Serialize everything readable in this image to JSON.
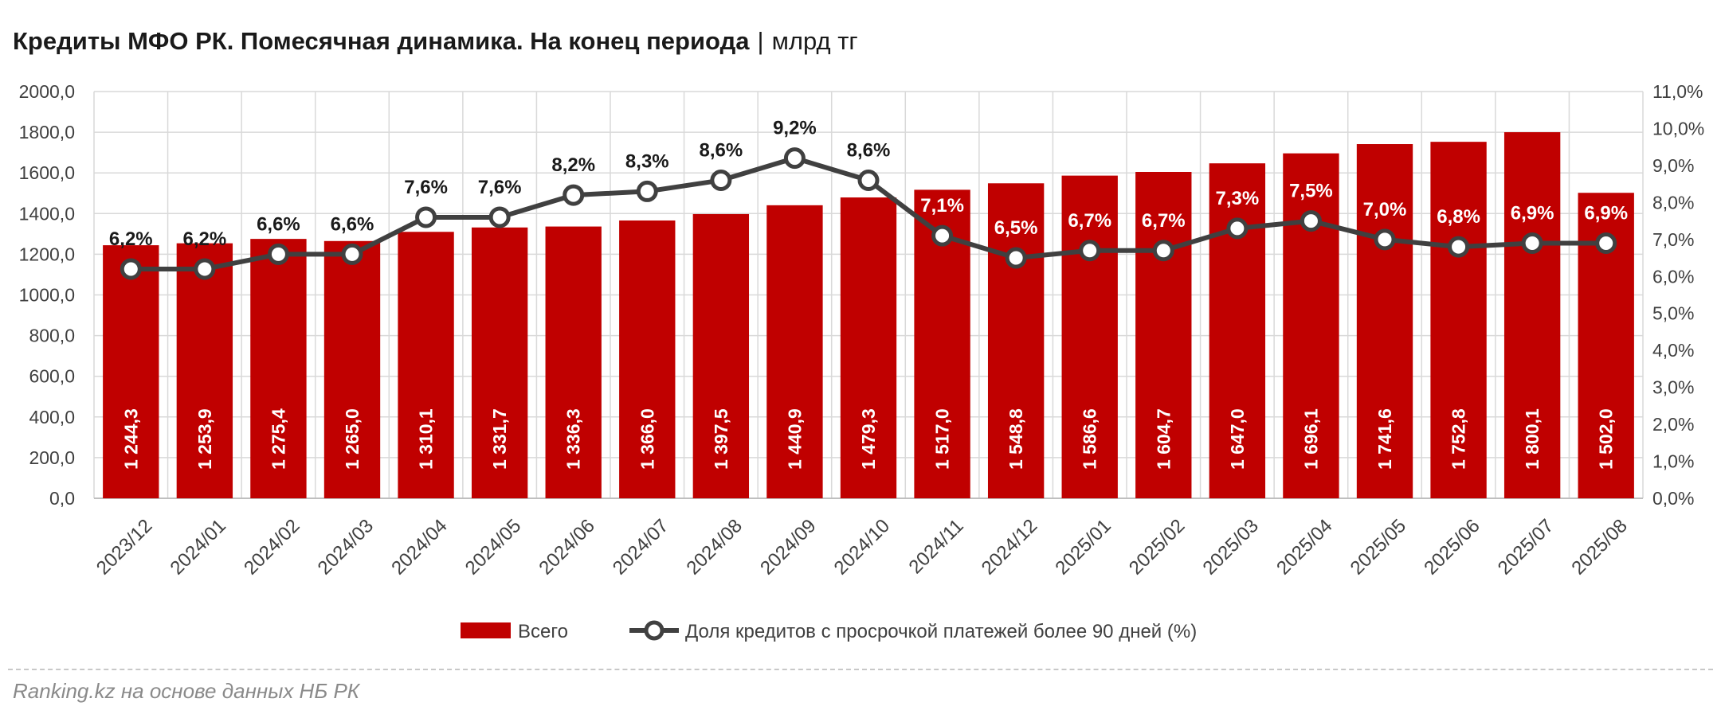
{
  "title": "Кредиты МФО РК. Помесячная динамика. На конец периода",
  "unit": "млрд тг",
  "source": "Ranking.kz на основе данных НБ РК",
  "chart_data": {
    "type": "bar",
    "title": "Кредиты МФО РК. Помесячная динамика. На конец периода",
    "categories": [
      "2023/12",
      "2024/01",
      "2024/02",
      "2024/03",
      "2024/04",
      "2024/05",
      "2024/06",
      "2024/07",
      "2024/08",
      "2024/09",
      "2024/10",
      "2024/11",
      "2024/12",
      "2025/01",
      "2025/02",
      "2025/03",
      "2025/04",
      "2025/05",
      "2025/06",
      "2025/07",
      "2025/08"
    ],
    "series": [
      {
        "name": "Всего",
        "type": "bar",
        "axis": "left",
        "color": "#c00000",
        "values": [
          1244.3,
          1253.9,
          1275.4,
          1265.0,
          1310.1,
          1331.7,
          1336.3,
          1366.0,
          1397.5,
          1440.9,
          1479.3,
          1517.0,
          1548.8,
          1586.6,
          1604.7,
          1647.0,
          1696.1,
          1741.6,
          1752.8,
          1800.1,
          1502.0
        ],
        "labels": [
          "1 244,3",
          "1 253,9",
          "1 275,4",
          "1 265,0",
          "1 310,1",
          "1 331,7",
          "1 336,3",
          "1 366,0",
          "1 397,5",
          "1 440,9",
          "1 479,3",
          "1 517,0",
          "1 548,8",
          "1 586,6",
          "1 604,7",
          "1 647,0",
          "1 696,1",
          "1 741,6",
          "1 752,8",
          "1 800,1",
          "1 502,0"
        ]
      },
      {
        "name": "Доля кредитов с просрочкой платежей более 90 дней (%)",
        "type": "line",
        "axis": "right",
        "color": "#404040",
        "values": [
          6.2,
          6.2,
          6.6,
          6.6,
          7.6,
          7.6,
          8.2,
          8.3,
          8.6,
          9.2,
          8.6,
          7.1,
          6.5,
          6.7,
          6.7,
          7.3,
          7.5,
          7.0,
          6.8,
          6.9,
          6.9
        ],
        "labels": [
          "6,2%",
          "6,2%",
          "6,6%",
          "6,6%",
          "7,6%",
          "7,6%",
          "8,2%",
          "8,3%",
          "8,6%",
          "9,2%",
          "8,6%",
          "7,1%",
          "6,5%",
          "6,7%",
          "6,7%",
          "7,3%",
          "7,5%",
          "7,0%",
          "6,8%",
          "6,9%",
          "6,9%"
        ]
      }
    ],
    "y_left": {
      "min": 0,
      "max": 2000,
      "ticks": [
        "0,0",
        "200,0",
        "400,0",
        "600,0",
        "800,0",
        "1000,0",
        "1200,0",
        "1400,0",
        "1600,0",
        "1800,0",
        "2000,0"
      ]
    },
    "y_right": {
      "min": 0,
      "max": 11,
      "ticks": [
        "0,0%",
        "1,0%",
        "2,0%",
        "3,0%",
        "4,0%",
        "5,0%",
        "6,0%",
        "7,0%",
        "8,0%",
        "9,0%",
        "10,0%",
        "11,0%"
      ]
    },
    "grid": true,
    "legend_position": "bottom"
  }
}
